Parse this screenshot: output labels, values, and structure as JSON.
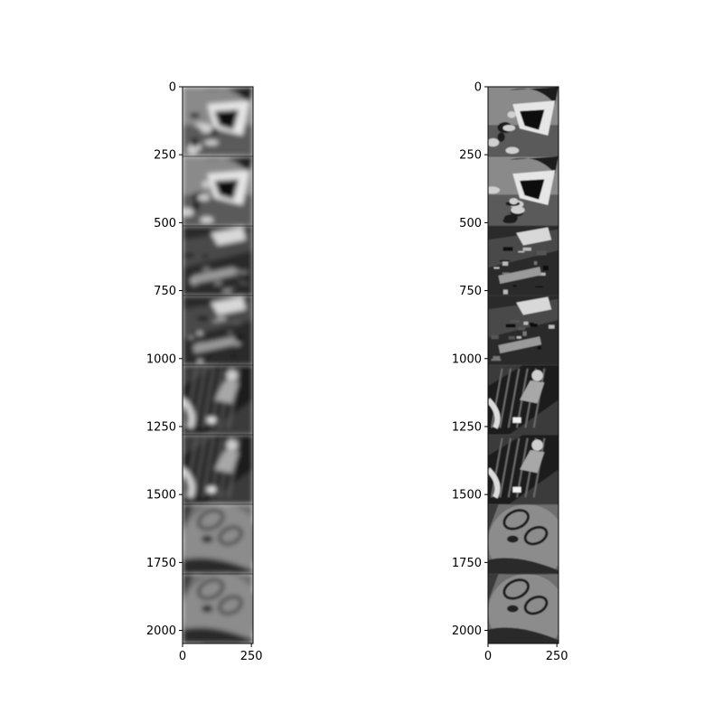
{
  "figure": {
    "background": "#ffffff",
    "panels": [
      {
        "name": "left-strip",
        "description_colormap": "gray",
        "image_extent": {
          "x": [
            0,
            256
          ],
          "y": [
            0,
            2048
          ]
        },
        "frames": [
          {
            "index": 0,
            "subject": "graffiti-skull"
          },
          {
            "index": 1,
            "subject": "graffiti-skull"
          },
          {
            "index": 2,
            "subject": "rotated-rooftop-scene"
          },
          {
            "index": 3,
            "subject": "rotated-rooftop-scene"
          },
          {
            "index": 4,
            "subject": "person-on-ramp"
          },
          {
            "index": 5,
            "subject": "person-on-ramp"
          },
          {
            "index": 6,
            "subject": "face-closeup"
          },
          {
            "index": 7,
            "subject": "face-closeup"
          }
        ],
        "y_ticks": [
          {
            "value": 0,
            "label": "0"
          },
          {
            "value": 250,
            "label": "250"
          },
          {
            "value": 500,
            "label": "500"
          },
          {
            "value": 750,
            "label": "750"
          },
          {
            "value": 1000,
            "label": "1000"
          },
          {
            "value": 1250,
            "label": "1250"
          },
          {
            "value": 1500,
            "label": "1500"
          },
          {
            "value": 1750,
            "label": "1750"
          },
          {
            "value": 2000,
            "label": "2000"
          }
        ],
        "x_ticks": [
          {
            "value": 0,
            "label": "0"
          },
          {
            "value": 250,
            "label": "250"
          }
        ]
      },
      {
        "name": "right-strip",
        "description_colormap": "gray",
        "image_extent": {
          "x": [
            0,
            256
          ],
          "y": [
            0,
            2048
          ]
        },
        "frames": [
          {
            "index": 0,
            "subject": "graffiti-skull"
          },
          {
            "index": 1,
            "subject": "graffiti-skull"
          },
          {
            "index": 2,
            "subject": "rotated-rooftop-scene"
          },
          {
            "index": 3,
            "subject": "rotated-rooftop-scene"
          },
          {
            "index": 4,
            "subject": "person-on-ramp"
          },
          {
            "index": 5,
            "subject": "person-on-ramp"
          },
          {
            "index": 6,
            "subject": "face-closeup"
          },
          {
            "index": 7,
            "subject": "face-closeup"
          }
        ],
        "y_ticks": [
          {
            "value": 0,
            "label": "0"
          },
          {
            "value": 250,
            "label": "250"
          },
          {
            "value": 500,
            "label": "500"
          },
          {
            "value": 750,
            "label": "750"
          },
          {
            "value": 1000,
            "label": "1000"
          },
          {
            "value": 1250,
            "label": "1250"
          },
          {
            "value": 1500,
            "label": "1500"
          },
          {
            "value": 1750,
            "label": "1750"
          },
          {
            "value": 2000,
            "label": "2000"
          }
        ],
        "x_ticks": [
          {
            "value": 0,
            "label": "0"
          },
          {
            "value": 250,
            "label": "250"
          }
        ]
      }
    ]
  }
}
